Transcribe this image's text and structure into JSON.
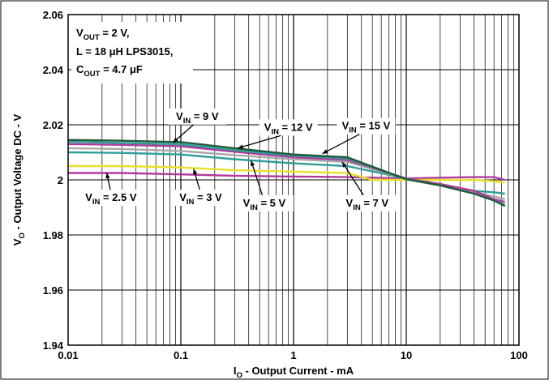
{
  "chart_data": {
    "type": "line",
    "xscale": "log",
    "xlim": [
      0.01,
      100
    ],
    "ylim": [
      1.94,
      2.06
    ],
    "grid": true,
    "xticks": [
      "0.01",
      "0.1",
      "1",
      "10",
      "100"
    ],
    "yticks": [
      "1.94",
      "1.96",
      "1.98",
      "2",
      "2.02",
      "2.04",
      "2.06"
    ],
    "xlabel": {
      "main": "I",
      "sub": "O",
      "rest": " - Output Current - mA"
    },
    "ylabel": {
      "main": "V",
      "sub": "O",
      "rest": " - Output Voltage DC - V"
    },
    "conditions": {
      "line1": {
        "main": "V",
        "sub": "OUT",
        "rest": " = 2 V,"
      },
      "line2": "L = 18 μH LPS3015,",
      "line3": {
        "main": "C",
        "sub": "OUT",
        "rest": " = 4.7 μF"
      }
    },
    "series": [
      {
        "name": {
          "main": "V",
          "sub": "IN",
          "rest": " = 2.5 V"
        },
        "color": "#b03a9c",
        "x": [
          0.01,
          0.03,
          0.1,
          0.3,
          1,
          3,
          10,
          20,
          40,
          60,
          75
        ],
        "y": [
          2.0025,
          2.0025,
          2.002,
          2.0015,
          2.0012,
          2.001,
          2.0005,
          2.0008,
          2.001,
          2.001,
          2.0
        ]
      },
      {
        "name": {
          "main": "V",
          "sub": "IN",
          "rest": " = 3 V"
        },
        "color": "#e8e02a",
        "x": [
          0.01,
          0.03,
          0.1,
          0.3,
          1,
          3,
          5,
          10,
          20,
          40,
          60,
          75
        ],
        "y": [
          2.005,
          2.005,
          2.0045,
          2.0035,
          2.003,
          2.0025,
          2.0,
          2.0,
          2.0,
          2.0,
          1.9995,
          1.999
        ]
      },
      {
        "name": {
          "main": "V",
          "sub": "IN",
          "rest": " = 5 V"
        },
        "color": "#2e9e98",
        "x": [
          0.01,
          0.03,
          0.1,
          0.3,
          1,
          3,
          10,
          20,
          40,
          60,
          75
        ],
        "y": [
          2.01,
          2.0098,
          2.0092,
          2.0075,
          2.006,
          2.005,
          2.0005,
          1.998,
          1.996,
          1.9955,
          1.995
        ]
      },
      {
        "name": {
          "main": "V",
          "sub": "IN",
          "rest": " = 7 V"
        },
        "color": "#a8a8a8",
        "x": [
          0.01,
          0.03,
          0.1,
          0.3,
          1,
          3,
          10,
          20,
          40,
          60,
          75
        ],
        "y": [
          2.0115,
          2.0112,
          2.0105,
          2.009,
          2.0075,
          2.0065,
          2.0005,
          1.998,
          1.9955,
          1.994,
          1.993
        ]
      },
      {
        "name": {
          "main": "V",
          "sub": "IN",
          "rest": " = 9 V"
        },
        "color": "#b03a9c",
        "x": [
          0.01,
          0.03,
          0.1,
          0.3,
          1,
          3,
          10,
          20,
          40,
          60,
          75
        ],
        "y": [
          2.013,
          2.0127,
          2.0122,
          2.0102,
          2.0082,
          2.0072,
          2.0005,
          1.9985,
          1.996,
          1.993,
          1.992
        ]
      },
      {
        "name": {
          "main": "V",
          "sub": "IN",
          "rest": " = 12 V"
        },
        "color": "#2e9e98",
        "x": [
          0.01,
          0.03,
          0.1,
          0.3,
          1,
          3,
          10,
          20,
          40,
          60,
          75
        ],
        "y": [
          2.0138,
          2.0134,
          2.0129,
          2.0108,
          2.0088,
          2.0078,
          2.0003,
          1.998,
          1.995,
          1.9925,
          1.991
        ]
      },
      {
        "name": {
          "main": "V",
          "sub": "IN",
          "rest": " = 15 V"
        },
        "color": "#1f5a3a",
        "x": [
          0.01,
          0.03,
          0.1,
          0.3,
          1,
          3,
          10,
          20,
          40,
          60,
          75
        ],
        "y": [
          2.0145,
          2.0142,
          2.0137,
          2.0115,
          2.0092,
          2.0082,
          2.0002,
          1.998,
          1.995,
          1.9925,
          1.9905
        ]
      }
    ],
    "annotations": [
      {
        "series": 0,
        "label_pos": [
          0.024,
          1.9935
        ],
        "target": [
          0.022,
          2.0025
        ]
      },
      {
        "series": 1,
        "label_pos": [
          0.15,
          1.9935
        ],
        "target": [
          0.13,
          2.004
        ]
      },
      {
        "series": 2,
        "label_pos": [
          0.55,
          1.9915
        ],
        "target": [
          0.42,
          2.007
        ]
      },
      {
        "series": 3,
        "label_pos": [
          4.5,
          1.9915
        ],
        "target": [
          2.7,
          2.0065
        ]
      },
      {
        "series": 4,
        "label_pos": [
          0.14,
          2.023
        ],
        "target": [
          0.085,
          2.0135
        ]
      },
      {
        "series": 5,
        "label_pos": [
          0.9,
          2.019
        ],
        "target": [
          0.32,
          2.0115
        ]
      },
      {
        "series": 6,
        "label_pos": [
          4.4,
          2.0195
        ],
        "target": [
          1.8,
          2.0095
        ]
      }
    ]
  }
}
